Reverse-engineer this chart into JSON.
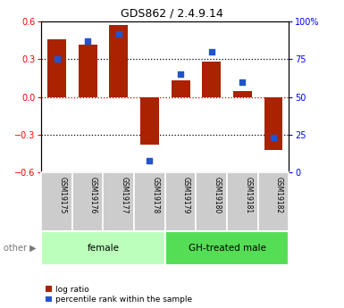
{
  "title": "GDS862 / 2.4.9.14",
  "samples": [
    "GSM19175",
    "GSM19176",
    "GSM19177",
    "GSM19178",
    "GSM19179",
    "GSM19180",
    "GSM19181",
    "GSM19182"
  ],
  "log_ratio": [
    0.46,
    0.42,
    0.57,
    -0.38,
    0.13,
    0.28,
    0.05,
    -0.42
  ],
  "percentile_rank": [
    75,
    87,
    92,
    8,
    65,
    80,
    60,
    23
  ],
  "groups": [
    {
      "label": "female",
      "start": 0,
      "end": 4,
      "color": "#bbffbb"
    },
    {
      "label": "GH-treated male",
      "start": 4,
      "end": 8,
      "color": "#55dd55"
    }
  ],
  "ylim_left": [
    -0.6,
    0.6
  ],
  "ylim_right": [
    0,
    100
  ],
  "yticks_left": [
    -0.6,
    -0.3,
    0.0,
    0.3,
    0.6
  ],
  "yticks_right": [
    0,
    25,
    50,
    75,
    100
  ],
  "ytick_labels_right": [
    "0",
    "25",
    "50",
    "75",
    "100%"
  ],
  "bar_color": "#aa2200",
  "dot_color": "#2255cc",
  "hline_color_zero": "#cc0000",
  "hline_color_grid": "#000000",
  "legend_labels": [
    "log ratio",
    "percentile rank within the sample"
  ],
  "other_label": "other",
  "bar_width": 0.6,
  "dot_size": 20,
  "title_fontsize": 9,
  "tick_fontsize": 7,
  "sample_fontsize": 5.5,
  "group_fontsize": 7.5,
  "legend_fontsize": 6.5
}
